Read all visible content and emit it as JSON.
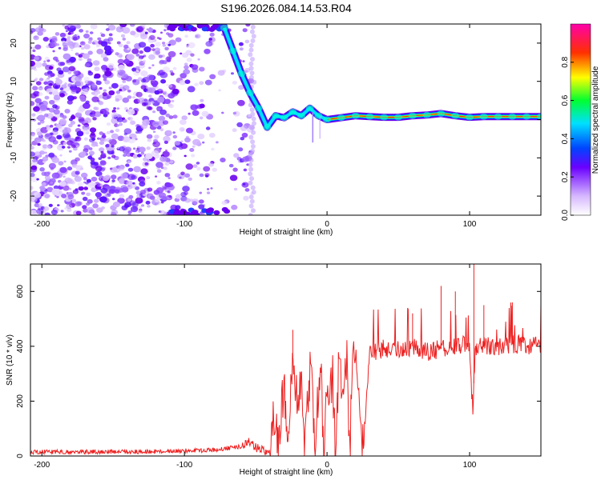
{
  "title": "S196.2026.084.14.53.R04",
  "chart_data": [
    {
      "type": "heatmap",
      "xlabel": "Height of straight line (km)",
      "ylabel": "Frequency (Hz)",
      "xlim": [
        -208,
        150
      ],
      "ylim": [
        -25,
        25
      ],
      "xticks": [
        -200,
        -100,
        0,
        100
      ],
      "yticks": [
        -20,
        -10,
        0,
        10,
        20
      ],
      "grid": false,
      "colorbar": {
        "label": "Normalized spectral amplitude",
        "range": [
          0,
          1
        ],
        "ticks": [
          0,
          0.2,
          0.4,
          0.6,
          0.8
        ],
        "colormap": "white-violet-blue-cyan-green-yellow-red-magenta"
      },
      "ridge": [
        {
          "x": -72,
          "y": 24
        },
        {
          "x": -66,
          "y": 18
        },
        {
          "x": -60,
          "y": 12
        },
        {
          "x": -54,
          "y": 7
        },
        {
          "x": -48,
          "y": 3
        },
        {
          "x": -42,
          "y": -2
        },
        {
          "x": -36,
          "y": 1
        },
        {
          "x": -30,
          "y": 0.5
        },
        {
          "x": -24,
          "y": 2
        },
        {
          "x": -18,
          "y": 1
        },
        {
          "x": -12,
          "y": 3
        },
        {
          "x": -6,
          "y": 1
        },
        {
          "x": 0,
          "y": 0
        },
        {
          "x": 10,
          "y": 0.5
        },
        {
          "x": 20,
          "y": 1
        },
        {
          "x": 30,
          "y": 0.8
        },
        {
          "x": 40,
          "y": 0.6
        },
        {
          "x": 50,
          "y": 0.6
        },
        {
          "x": 60,
          "y": 1
        },
        {
          "x": 70,
          "y": 1.2
        },
        {
          "x": 80,
          "y": 1.6
        },
        {
          "x": 90,
          "y": 1
        },
        {
          "x": 100,
          "y": 0.6
        },
        {
          "x": 110,
          "y": 0.8
        },
        {
          "x": 120,
          "y": 0.8
        },
        {
          "x": 130,
          "y": 0.8
        },
        {
          "x": 140,
          "y": 0.8
        },
        {
          "x": 150,
          "y": 0.8
        }
      ]
    },
    {
      "type": "line",
      "xlabel": "Height of straight line (km)",
      "ylabel": "SNR (10 * v/v)",
      "xlim": [
        -208,
        150
      ],
      "ylim": [
        0,
        700
      ],
      "xticks": [
        -200,
        -100,
        0,
        100
      ],
      "yticks": [
        0,
        200,
        400,
        600
      ],
      "grid": false,
      "series": [
        {
          "color": "#ee2020",
          "x": [
            -208,
            -190,
            -170,
            -150,
            -130,
            -110,
            -90,
            -80,
            -70,
            -60,
            -55,
            -50,
            -45,
            -40,
            -38,
            -36,
            -34,
            -32,
            -30,
            -28,
            -26,
            -24,
            -22,
            -20,
            -18,
            -16,
            -14,
            -12,
            -10,
            -8,
            -6,
            -4,
            -2,
            0,
            2,
            4,
            6,
            8,
            10,
            12,
            14,
            16,
            18,
            20,
            25,
            30,
            40,
            50,
            60,
            70,
            80,
            90,
            95,
            100,
            102,
            104,
            110,
            120,
            130,
            140,
            150
          ],
          "values": [
            15,
            15,
            15,
            16,
            16,
            18,
            20,
            22,
            28,
            35,
            60,
            30,
            20,
            15,
            150,
            180,
            0,
            200,
            240,
            0,
            170,
            360,
            250,
            230,
            260,
            0,
            190,
            300,
            200,
            0,
            260,
            270,
            0,
            250,
            260,
            280,
            0,
            300,
            280,
            320,
            380,
            0,
            420,
            400,
            0,
            380,
            390,
            390,
            400,
            380,
            390,
            400,
            410,
            400,
            140,
            390,
            400,
            400,
            410,
            400,
            405
          ],
          "spikes": [
            {
              "x": -24,
              "y": 460
            },
            {
              "x": 60,
              "y": 520
            },
            {
              "x": 80,
              "y": 620
            },
            {
              "x": 90,
              "y": 600
            },
            {
              "x": 103,
              "y": 700
            },
            {
              "x": 110,
              "y": 550
            },
            {
              "x": 130,
              "y": 560
            }
          ]
        }
      ]
    }
  ]
}
